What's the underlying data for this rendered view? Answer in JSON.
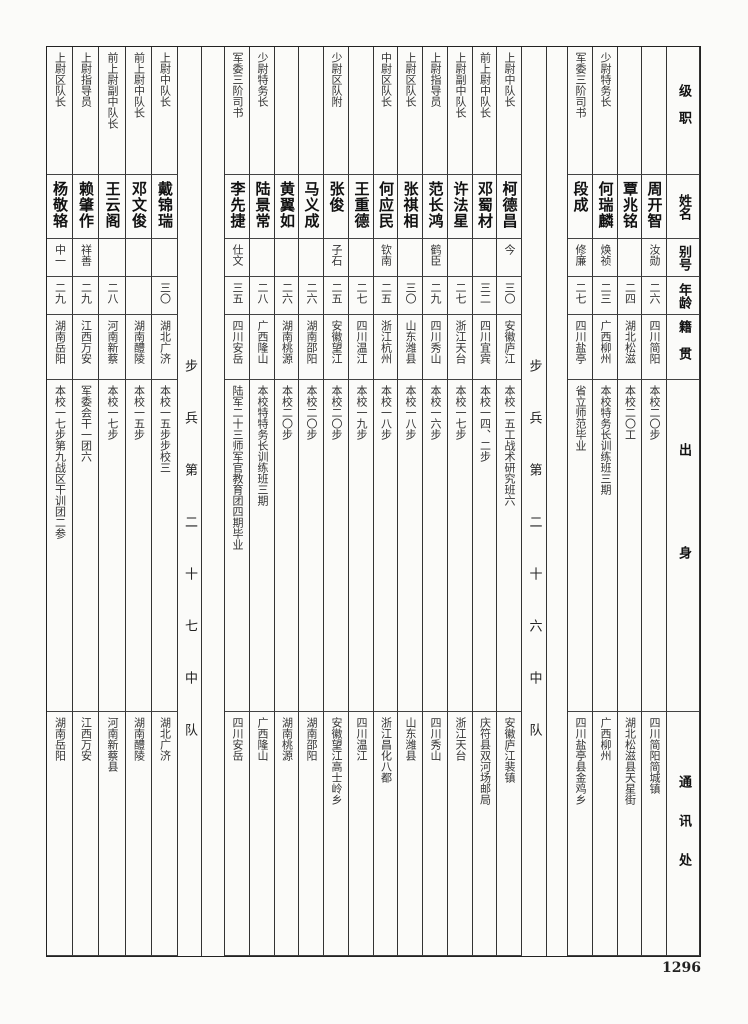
{
  "header": {
    "rank": "级职",
    "name": "姓名",
    "alias": "别号",
    "age": "年龄",
    "origin": "籍贯",
    "education": "出身",
    "address": "通讯处"
  },
  "groups": [
    {
      "title": "",
      "rows": [
        {
          "rank": "",
          "name": "周开智",
          "alias": "汝勋",
          "age": "二六",
          "origin": "四川简阳",
          "education": "本校二〇步",
          "address": "四川简阳简城镇"
        },
        {
          "rank": "",
          "name": "覃兆铭",
          "alias": "",
          "age": "二四",
          "origin": "湖北松滋",
          "education": "本校二〇工",
          "address": "湖北松滋县天星街"
        },
        {
          "rank": "少尉特务长",
          "name": "何瑞麟",
          "alias": "焕祯",
          "age": "二三",
          "origin": "广西柳州",
          "education": "本校特务长训练班三期",
          "address": "广西柳州"
        },
        {
          "rank": "军委三阶司书",
          "name": "段成",
          "alias": "修廉",
          "age": "二七",
          "origin": "四川盐亭",
          "education": "省立师范毕业",
          "address": "四川盐亭县金鸡乡"
        }
      ]
    },
    {
      "title": "步兵第二十六中队",
      "rows": [
        {
          "rank": "上尉中队长",
          "name": "柯德昌",
          "alias": "今",
          "age": "三〇",
          "origin": "安徽庐江",
          "education": "本校一五工战术研究班六",
          "address": "安徽庐江裴镇"
        },
        {
          "rank": "前上尉中队长",
          "name": "邓蜀材",
          "alias": "",
          "age": "三二",
          "origin": "四川宜宾",
          "education": "本校一四、二步",
          "address": "庆符县双河场邮局"
        },
        {
          "rank": "上尉副中队长",
          "name": "许法星",
          "alias": "",
          "age": "二七",
          "origin": "浙江天台",
          "education": "本校一七步",
          "address": "浙江天台"
        },
        {
          "rank": "上尉指导员",
          "name": "范长鸿",
          "alias": "鹤臣",
          "age": "二九",
          "origin": "四川秀山",
          "education": "本校一六步",
          "address": "四川秀山"
        },
        {
          "rank": "上尉区队长",
          "name": "张祺相",
          "alias": "",
          "age": "三〇",
          "origin": "山东潍县",
          "education": "本校一八步",
          "address": "山东潍县"
        },
        {
          "rank": "中尉区队长",
          "name": "何应民",
          "alias": "钦南",
          "age": "二五",
          "origin": "浙江杭州",
          "education": "本校一八步",
          "address": "浙江昌化八都"
        },
        {
          "rank": "",
          "name": "王重德",
          "alias": "",
          "age": "二七",
          "origin": "四川温江",
          "education": "本校一九步",
          "address": "四川温江"
        },
        {
          "rank": "少尉区队附",
          "name": "张俊",
          "alias": "子石",
          "age": "二五",
          "origin": "安徽望江",
          "education": "本校二〇步",
          "address": "安徽望江高士岭乡"
        },
        {
          "rank": "",
          "name": "马义成",
          "alias": "",
          "age": "二六",
          "origin": "湖南邵阳",
          "education": "本校二〇步",
          "address": "湖南邵阳"
        },
        {
          "rank": "",
          "name": "黄翼如",
          "alias": "",
          "age": "二六",
          "origin": "湖南桃源",
          "education": "本校二〇步",
          "address": "湖南桃源"
        },
        {
          "rank": "少尉特务长",
          "name": "陆景常",
          "alias": "",
          "age": "二八",
          "origin": "广西隆山",
          "education": "本校特特务长训练班三期",
          "address": "广西隆山"
        },
        {
          "rank": "军委三阶司书",
          "name": "李先捷",
          "alias": "仕文",
          "age": "三五",
          "origin": "四川安岳",
          "education": "陆军二十三师军官教育团四期毕业",
          "address": "四川安岳"
        }
      ]
    },
    {
      "title": "步兵第二十七中队",
      "rows": [
        {
          "rank": "上尉中队长",
          "name": "戴锦瑞",
          "alias": "",
          "age": "三〇",
          "origin": "湖北广济",
          "education": "本校一五步步校三",
          "address": "湖北广济"
        },
        {
          "rank": "前上尉中队长",
          "name": "邓文俊",
          "alias": "",
          "age": "",
          "origin": "湖南醴陵",
          "education": "本校一五步",
          "address": "湖南醴陵"
        },
        {
          "rank": "前上尉副中队长",
          "name": "王云阁",
          "alias": "",
          "age": "二八",
          "origin": "河南新蔡",
          "education": "本校一七步",
          "address": "河南新蔡县"
        },
        {
          "rank": "上尉指导员",
          "name": "赖肇作",
          "alias": "祥善",
          "age": "二九",
          "origin": "江西万安",
          "education": "军委会干一团六",
          "address": "江西万安"
        },
        {
          "rank": "上尉区队长",
          "name": "杨敬辂",
          "alias": "中一",
          "age": "二九",
          "origin": "湖南岳阳",
          "education": "本校一七步第九战区干训团二参",
          "address": "湖南岳阳"
        }
      ]
    }
  ],
  "page_number": "1296"
}
